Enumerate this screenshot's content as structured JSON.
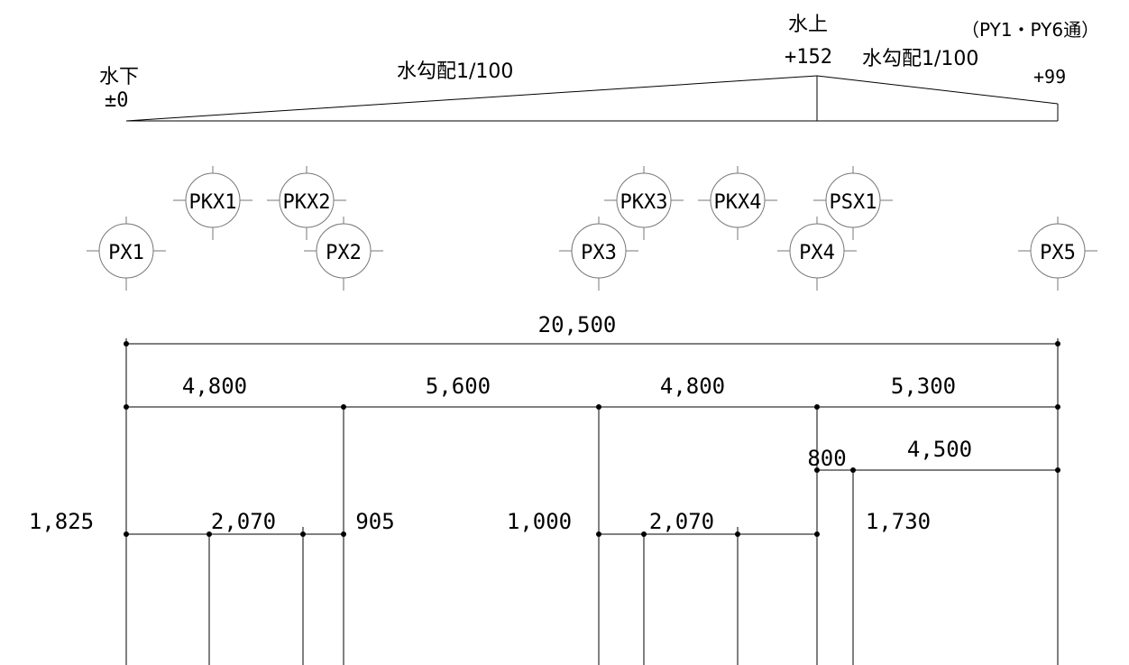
{
  "slope": {
    "low_label": "水下",
    "low_value": "±0",
    "slope1_label": "水勾配1/100",
    "high_label": "水上",
    "high_value": "+152",
    "slope2_label": "水勾配1/100",
    "end_value": "+99",
    "grid_note": "（PY1・PY6通）"
  },
  "grid_bubbles": {
    "main": [
      "PX1",
      "PX2",
      "PX3",
      "PX4",
      "PX5"
    ],
    "sub": [
      "PKX1",
      "PKX2",
      "PKX3",
      "PKX4",
      "PSX1"
    ]
  },
  "dimensions": {
    "overall": "20,500",
    "spans": [
      "4,800",
      "5,600",
      "4,800",
      "5,300"
    ],
    "sub_left": "800",
    "sub_right": "4,500",
    "lower": [
      "1,825",
      "2,070",
      "905",
      "1,000",
      "2,070",
      "1,730"
    ]
  }
}
